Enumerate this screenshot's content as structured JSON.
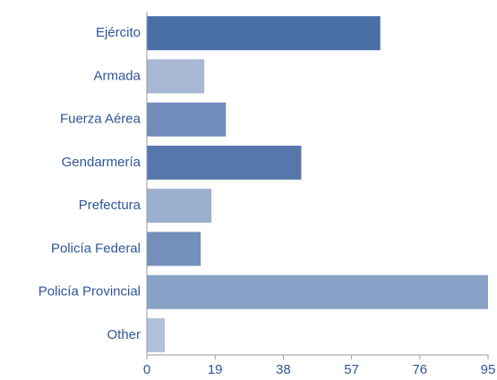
{
  "chart_data": {
    "type": "barh",
    "categories": [
      "Ejército",
      "Armada",
      "Fuerza Aérea",
      "Gendarmería",
      "Prefectura",
      "Policía Federal",
      "Policía Provincial",
      "Other"
    ],
    "values": [
      65,
      16,
      22,
      43,
      18,
      15,
      95,
      5
    ],
    "colors": [
      "#4a6ea6",
      "#a7b8d4",
      "#6f8cbb",
      "#5677ab",
      "#9db0cf",
      "#7390bd",
      "#8aa1c8",
      "#b1c1da"
    ],
    "xlim": [
      0,
      95
    ],
    "xticks": [
      0,
      19,
      38,
      57,
      76,
      95
    ]
  }
}
